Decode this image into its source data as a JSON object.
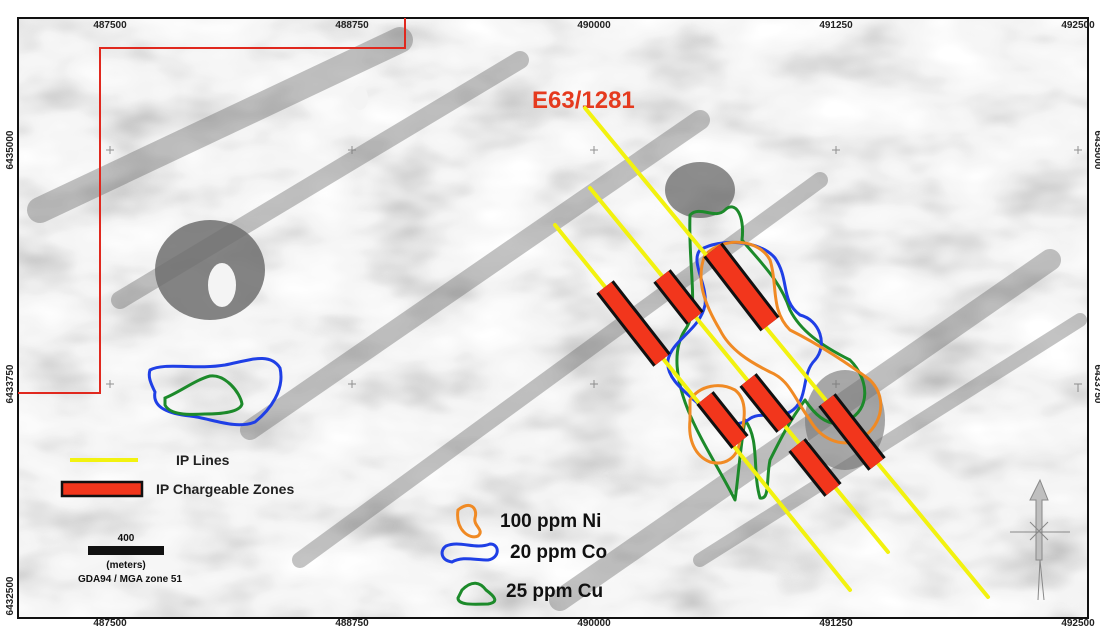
{
  "map": {
    "x_ticks": [
      "487500",
      "488750",
      "490000",
      "491250",
      "492500"
    ],
    "y_ticks": [
      "6435000",
      "6433750",
      "6432500"
    ],
    "tenement_label": "E63/1281",
    "legend_lines": {
      "ip_lines": "IP Lines",
      "ip_zones": "IP Chargeable Zones"
    },
    "legend_geochem": [
      {
        "label": "100 ppm Ni",
        "color": "#f08a24"
      },
      {
        "label": "20 ppm Co",
        "color": "#1f3fe6"
      },
      {
        "label": "25 ppm Cu",
        "color": "#1c8a2a"
      }
    ],
    "scale_bar": {
      "value": "400",
      "unit": "(meters)",
      "projection": "GDA94 / MGA zone 51"
    },
    "colors": {
      "ip_line": "#f2f20f",
      "ip_zone": "#f2361c",
      "tenement_boundary": "#e0281e"
    },
    "icons": [
      "north-arrow-icon"
    ]
  }
}
